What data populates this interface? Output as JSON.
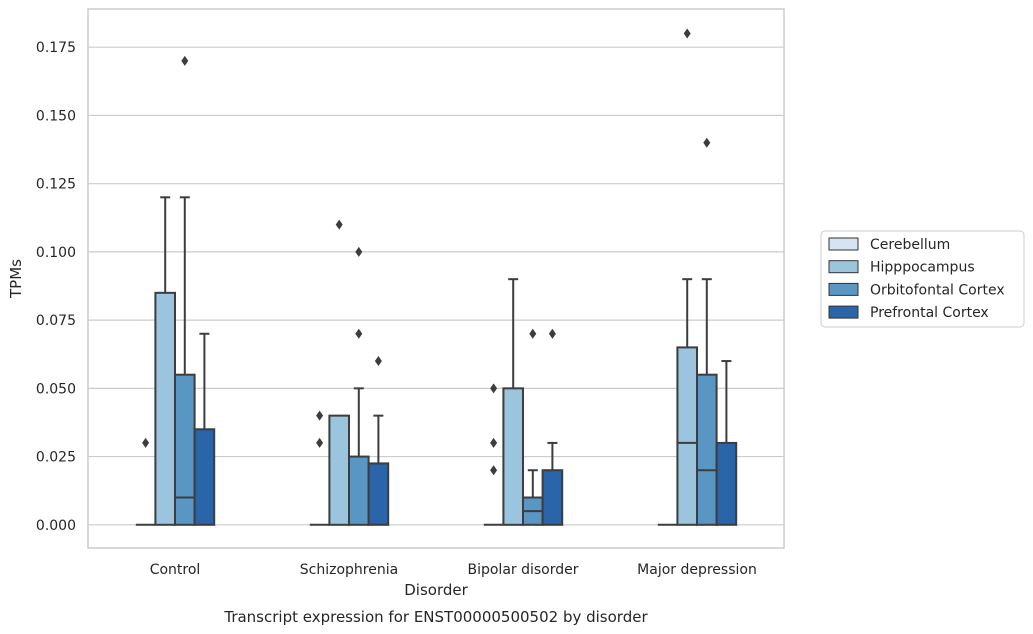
{
  "chart_data": {
    "type": "box",
    "title": "",
    "caption": "Transcript expression for ENST00000500502 by disorder",
    "xlabel": "Disorder",
    "ylabel": "TPMs",
    "ylim": [
      -0.0085,
      0.189
    ],
    "yticks": [
      "0.000",
      "0.025",
      "0.050",
      "0.075",
      "0.100",
      "0.125",
      "0.150",
      "0.175"
    ],
    "grid": "horizontal",
    "legend_position": "right",
    "categories": [
      "Control",
      "Schizophrenia",
      "Bipolar disorder",
      "Major depression"
    ],
    "series": [
      {
        "name": "Cerebellum",
        "color": "#d5e4f2",
        "boxes": [
          {
            "q1": 0,
            "median": 0,
            "q3": 0,
            "whisker_low": 0,
            "whisker_high": 0,
            "outliers": [
              0.03
            ]
          },
          {
            "q1": 0,
            "median": 0,
            "q3": 0,
            "whisker_low": 0,
            "whisker_high": 0,
            "outliers": [
              0.03,
              0.04
            ]
          },
          {
            "q1": 0,
            "median": 0,
            "q3": 0,
            "whisker_low": 0,
            "whisker_high": 0,
            "outliers": [
              0.02,
              0.03,
              0.05
            ]
          },
          {
            "q1": 0,
            "median": 0,
            "q3": 0,
            "whisker_low": 0,
            "whisker_high": 0,
            "outliers": []
          }
        ]
      },
      {
        "name": "Hipppocampus",
        "color": "#9bc4df",
        "boxes": [
          {
            "q1": 0,
            "median": 0,
            "q3": 0.085,
            "whisker_low": 0,
            "whisker_high": 0.12,
            "outliers": []
          },
          {
            "q1": 0,
            "median": 0,
            "q3": 0.04,
            "whisker_low": 0,
            "whisker_high": 0.04,
            "outliers": [
              0.11
            ]
          },
          {
            "q1": 0,
            "median": 0,
            "q3": 0.05,
            "whisker_low": 0,
            "whisker_high": 0.09,
            "outliers": []
          },
          {
            "q1": 0,
            "median": 0.03,
            "q3": 0.065,
            "whisker_low": 0,
            "whisker_high": 0.09,
            "outliers": [
              0.18
            ]
          }
        ]
      },
      {
        "name": "Orbitofontal Cortex",
        "color": "#5a96c4",
        "boxes": [
          {
            "q1": 0,
            "median": 0.01,
            "q3": 0.055,
            "whisker_low": 0,
            "whisker_high": 0.12,
            "outliers": [
              0.17
            ]
          },
          {
            "q1": 0,
            "median": 0,
            "q3": 0.025,
            "whisker_low": 0,
            "whisker_high": 0.05,
            "outliers": [
              0.07,
              0.1
            ]
          },
          {
            "q1": 0,
            "median": 0.005,
            "q3": 0.01,
            "whisker_low": 0,
            "whisker_high": 0.02,
            "outliers": [
              0.07
            ]
          },
          {
            "q1": 0,
            "median": 0.02,
            "q3": 0.055,
            "whisker_low": 0,
            "whisker_high": 0.09,
            "outliers": [
              0.14
            ]
          }
        ]
      },
      {
        "name": "Prefrontal Cortex",
        "color": "#2965a8",
        "boxes": [
          {
            "q1": 0,
            "median": 0,
            "q3": 0.035,
            "whisker_low": 0,
            "whisker_high": 0.07,
            "outliers": []
          },
          {
            "q1": 0,
            "median": 0,
            "q3": 0.0225,
            "whisker_low": 0,
            "whisker_high": 0.04,
            "outliers": [
              0.06
            ]
          },
          {
            "q1": 0,
            "median": 0,
            "q3": 0.02,
            "whisker_low": 0,
            "whisker_high": 0.03,
            "outliers": [
              0.07
            ]
          },
          {
            "q1": 0,
            "median": 0,
            "q3": 0.03,
            "whisker_low": 0,
            "whisker_high": 0.06,
            "outliers": []
          }
        ]
      }
    ]
  }
}
